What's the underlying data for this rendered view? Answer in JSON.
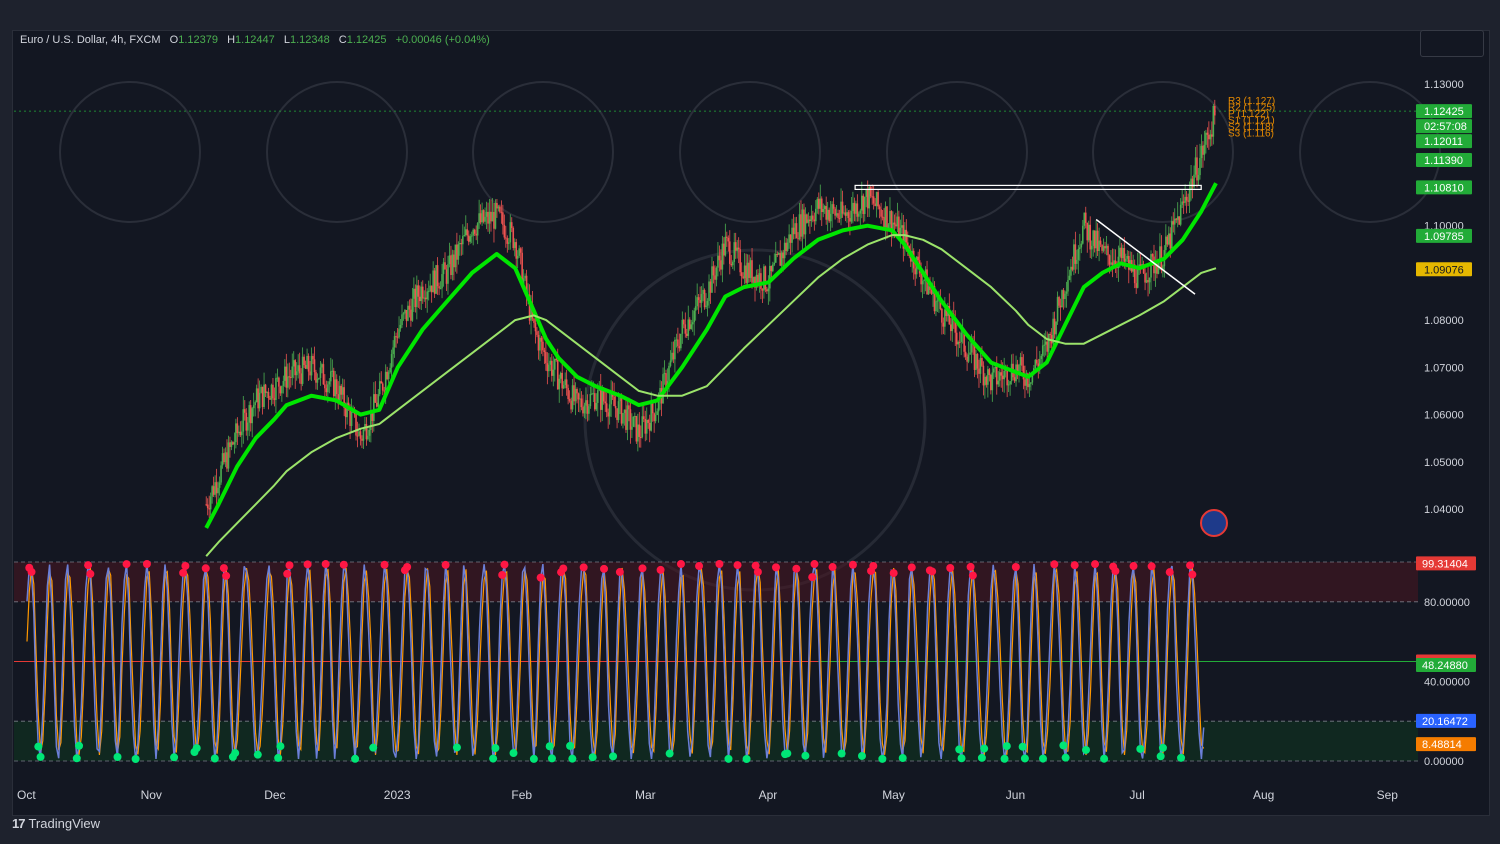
{
  "header": {
    "symbol": "Euro / U.S. Dollar, 4h, FXCM",
    "open_label": "O",
    "open": "1.12379",
    "high_label": "H",
    "high": "1.12447",
    "low_label": "L",
    "low": "1.12348",
    "close_label": "C",
    "close": "1.12425",
    "change": "+0.00046 (+0.04%)"
  },
  "footer": {
    "brand": "TradingView"
  },
  "chart_data": [
    {
      "type": "line",
      "title": "Euro / U.S. Dollar, 4h, FXCM",
      "y_ticks": [
        "1.13000",
        "1.10000",
        "1.08000",
        "1.07000",
        "1.06000",
        "1.05000",
        "1.04000"
      ],
      "y_tick_values": [
        1.13,
        1.1,
        1.08,
        1.07,
        1.06,
        1.05,
        1.04
      ],
      "hidden_tick_note": "",
      "ylim": [
        1.0365,
        1.1395
      ],
      "x_ticks": [
        "Oct",
        "Nov",
        "Dec",
        "2023",
        "Feb",
        "Mar",
        "Apr",
        "May",
        "Jun",
        "Jul",
        "Aug",
        "Sep"
      ],
      "x_tick_index": [
        0,
        1,
        2,
        3,
        4,
        5,
        6,
        7,
        8,
        9,
        10,
        11
      ],
      "price_series": {
        "x": [
          1.45,
          1.55,
          1.7,
          1.85,
          2.0,
          2.1,
          2.3,
          2.5,
          2.7,
          2.85,
          3.0,
          3.2,
          3.4,
          3.6,
          3.8,
          3.95,
          4.1,
          4.2,
          4.3,
          4.45,
          4.6,
          4.8,
          4.95,
          5.1,
          5.3,
          5.5,
          5.65,
          5.8,
          6.0,
          6.2,
          6.4,
          6.6,
          6.8,
          7.0,
          7.1,
          7.25,
          7.4,
          7.6,
          7.8,
          8.0,
          8.1,
          8.25,
          8.4,
          8.55,
          8.7,
          8.85,
          9.0,
          9.2,
          9.35,
          9.5,
          9.62
        ],
        "values": [
          1.041,
          1.047,
          1.056,
          1.063,
          1.066,
          1.068,
          1.07,
          1.066,
          1.055,
          1.064,
          1.078,
          1.087,
          1.09,
          1.1,
          1.102,
          1.097,
          1.078,
          1.072,
          1.068,
          1.062,
          1.064,
          1.061,
          1.056,
          1.062,
          1.078,
          1.086,
          1.096,
          1.091,
          1.088,
          1.099,
          1.104,
          1.102,
          1.106,
          1.101,
          1.097,
          1.089,
          1.082,
          1.074,
          1.067,
          1.07,
          1.068,
          1.074,
          1.088,
          1.1,
          1.094,
          1.093,
          1.089,
          1.094,
          1.104,
          1.115,
          1.124
        ]
      },
      "moving_averages": [
        {
          "color": "#00e600",
          "values": [
            1.036,
            1.041,
            1.049,
            1.055,
            1.059,
            1.062,
            1.064,
            1.063,
            1.06,
            1.061,
            1.07,
            1.078,
            1.084,
            1.09,
            1.094,
            1.091,
            1.082,
            1.076,
            1.072,
            1.068,
            1.066,
            1.064,
            1.062,
            1.063,
            1.07,
            1.078,
            1.085,
            1.087,
            1.088,
            1.093,
            1.097,
            1.099,
            1.1,
            1.099,
            1.096,
            1.09,
            1.084,
            1.077,
            1.071,
            1.069,
            1.068,
            1.071,
            1.079,
            1.087,
            1.09,
            1.092,
            1.091,
            1.093,
            1.097,
            1.103,
            1.109
          ]
        },
        {
          "color": "#9be36a",
          "values": [
            1.03,
            1.033,
            1.037,
            1.041,
            1.045,
            1.048,
            1.052,
            1.055,
            1.057,
            1.058,
            1.061,
            1.065,
            1.069,
            1.073,
            1.077,
            1.08,
            1.081,
            1.08,
            1.078,
            1.075,
            1.072,
            1.068,
            1.065,
            1.064,
            1.064,
            1.066,
            1.07,
            1.074,
            1.079,
            1.084,
            1.089,
            1.093,
            1.096,
            1.098,
            1.098,
            1.097,
            1.095,
            1.091,
            1.087,
            1.082,
            1.079,
            1.076,
            1.075,
            1.075,
            1.077,
            1.079,
            1.081,
            1.084,
            1.087,
            1.09,
            1.091
          ]
        }
      ],
      "horizontal_levels": [
        {
          "value": 1.1081,
          "color": "#ffffff",
          "label": ""
        }
      ],
      "price_labels": [
        {
          "text": "1.12425",
          "color": "#22ab38",
          "value": 1.12425
        },
        {
          "text": "02:57:08",
          "color": "#22ab38",
          "value": 1.12155
        },
        {
          "text": "1.12011",
          "color": "#22ab38",
          "value": 1.12011
        },
        {
          "text": "1.11390",
          "color": "#22ab38",
          "value": 1.1139
        },
        {
          "text": "1.10810",
          "color": "#22ab38",
          "value": 1.1081
        },
        {
          "text": "1.09785",
          "color": "#22ab38",
          "value": 1.09785
        },
        {
          "text": "1.09076",
          "color": "#e6b800",
          "value": 1.09076
        }
      ],
      "pivot_labels": [
        "R3 (1.127)",
        "R2 (1.125)",
        "P (1.122)",
        "S1 (1.121)",
        "S2 (1.118)",
        "S3 (1.116)"
      ]
    },
    {
      "type": "line",
      "title": "",
      "ylim": [
        0,
        100
      ],
      "y_ticks": [
        "80.00000",
        "40.00000",
        "0.00000"
      ],
      "y_tick_values": [
        80,
        40,
        0
      ],
      "bands": {
        "overbought": 80,
        "oversold": 20,
        "mid": 50
      },
      "value_labels": [
        {
          "text": "99.31404",
          "color": "#e53935",
          "value": 99.31404
        },
        {
          "text": "50.00000",
          "color": "#e53935",
          "value": 50.0
        },
        {
          "text": "48.24880",
          "color": "#22ab38",
          "value": 48.2488
        },
        {
          "text": "20.16472",
          "color": "#2962ff",
          "value": 20.16472
        },
        {
          "text": "8.48814",
          "color": "#f57c00",
          "value": 8.48814
        }
      ]
    }
  ],
  "colors": {
    "background": "#131722",
    "bull": "#26a69a",
    "candle_up": "#4caf50",
    "candle_down": "#ef5350",
    "oscillator_main": "#6b7fd7",
    "oscillator_signal": "#ff9800"
  }
}
